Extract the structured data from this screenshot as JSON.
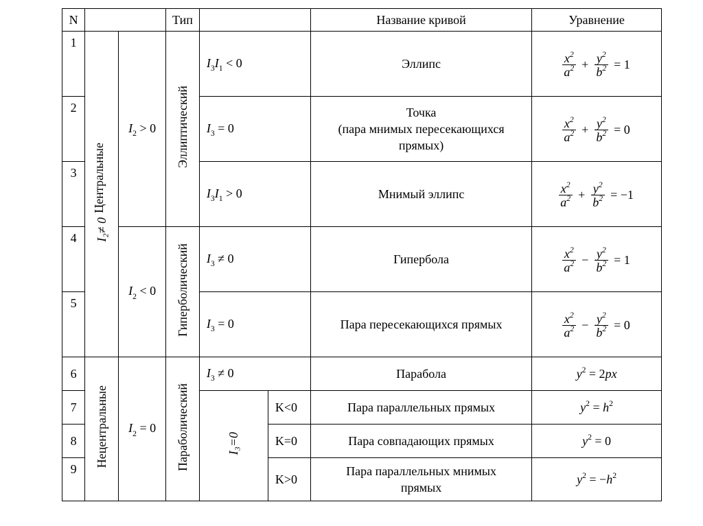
{
  "header": {
    "n": "N",
    "type": "Тип",
    "name": "Название кривой",
    "equation": "Уравнение"
  },
  "groups": {
    "central": "Центральные",
    "noncentral": "Нецентральные",
    "i2_ne_0": "I₂≠ 0",
    "i2_gt_0_html": "<span class='mi'>I</span><span class='sub'>2</span> &gt; 0",
    "i2_lt_0_html": "<span class='mi'>I</span><span class='sub'>2</span> &lt; 0",
    "i2_eq_0_html": "<span class='mi'>I</span><span class='sub'>2</span> = 0",
    "elliptic": "Эллиптический",
    "hyperbolic": "Гиперболический",
    "parabolic": "Параболический",
    "i3_eq_0_vert": "I₃=0"
  },
  "rows": {
    "1": {
      "n": "1",
      "cond_html": "<span class='mi'>I</span><span class='sub'>3</span><span class='mi'>I</span><span class='sub'>1</span> &lt; 0",
      "name": "Эллипс",
      "eq_html": "<span class='eq'><span class='frac'><span class='num'>x<span class='sup'>2</span></span><span class='den'>a<span class='sup'>2</span></span></span><span class='op'>+</span><span class='frac'><span class='num'>y<span class='sup'>2</span></span><span class='den'>b<span class='sup'>2</span></span></span><span class='op'>= 1</span></span>"
    },
    "2": {
      "n": "2",
      "cond_html": "<span class='mi'>I</span><span class='sub'>3</span> = 0",
      "name": "Точка\n(пара мнимых пересекающихся\nпрямых)",
      "eq_html": "<span class='eq'><span class='frac'><span class='num'>x<span class='sup'>2</span></span><span class='den'>a<span class='sup'>2</span></span></span><span class='op'>+</span><span class='frac'><span class='num'>y<span class='sup'>2</span></span><span class='den'>b<span class='sup'>2</span></span></span><span class='op'>= 0</span></span>"
    },
    "3": {
      "n": "3",
      "cond_html": "<span class='mi'>I</span><span class='sub'>3</span><span class='mi'>I</span><span class='sub'>1</span> &gt; 0",
      "name": "Мнимый эллипс",
      "eq_html": "<span class='eq'><span class='frac'><span class='num'>x<span class='sup'>2</span></span><span class='den'>a<span class='sup'>2</span></span></span><span class='op'>+</span><span class='frac'><span class='num'>y<span class='sup'>2</span></span><span class='den'>b<span class='sup'>2</span></span></span><span class='op'>= &minus;1</span></span>"
    },
    "4": {
      "n": "4",
      "cond_html": "<span class='mi'>I</span><span class='sub'>3</span> &ne; 0",
      "name": "Гипербола",
      "eq_html": "<span class='eq'><span class='frac'><span class='num'>x<span class='sup'>2</span></span><span class='den'>a<span class='sup'>2</span></span></span><span class='op'>&minus;</span><span class='frac'><span class='num'>y<span class='sup'>2</span></span><span class='den'>b<span class='sup'>2</span></span></span><span class='op'>= 1</span></span>"
    },
    "5": {
      "n": "5",
      "cond_html": "<span class='mi'>I</span><span class='sub'>3</span> = 0",
      "name": "Пара пересекающихся прямых",
      "eq_html": "<span class='eq'><span class='frac'><span class='num'>x<span class='sup'>2</span></span><span class='den'>a<span class='sup'>2</span></span></span><span class='op'>&minus;</span><span class='frac'><span class='num'>y<span class='sup'>2</span></span><span class='den'>b<span class='sup'>2</span></span></span><span class='op'>= 0</span></span>"
    },
    "6": {
      "n": "6",
      "cond_html": "<span class='mi'>I</span><span class='sub'>3</span> &ne; 0",
      "name": "Парабола",
      "eq_html": "<span class='mi'>y</span><span class='sup'>2</span> = 2<span class='mi'>p</span><span class='mi'>x</span>"
    },
    "7": {
      "n": "7",
      "k": "K<0",
      "name": "Пара параллельных прямых",
      "eq_html": "<span class='mi'>y</span><span class='sup'>2</span> = <span class='mi'>h</span><span class='sup'>2</span>"
    },
    "8": {
      "n": "8",
      "k": "K=0",
      "name": "Пара совпадающих прямых",
      "eq_html": "<span class='mi'>y</span><span class='sup'>2</span> = 0"
    },
    "9": {
      "n": "9",
      "k": "K>0",
      "name": "Пара параллельных мнимых\nпрямых",
      "eq_html": "<span class='mi'>y</span><span class='sup'>2</span> = &minus;<span class='mi'>h</span><span class='sup'>2</span>"
    }
  }
}
